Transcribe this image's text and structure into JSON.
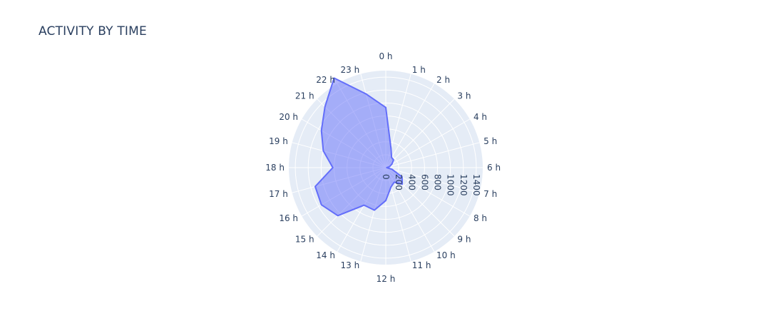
{
  "chart_data": {
    "type": "polar-area",
    "title": "ACTIVITY BY TIME",
    "angular_categories": [
      "0 h",
      "1 h",
      "2 h",
      "3 h",
      "4 h",
      "5 h",
      "6 h",
      "7 h",
      "8 h",
      "9 h",
      "10 h",
      "11 h",
      "12 h",
      "13 h",
      "14 h",
      "15 h",
      "16 h",
      "17 h",
      "18 h",
      "19 h",
      "20 h",
      "21 h",
      "22 h",
      "23 h"
    ],
    "radial_ticks": [
      "0",
      "200",
      "400",
      "600",
      "800",
      "1000",
      "1200",
      "1400"
    ],
    "radial_range": [
      0,
      1500
    ],
    "grid": true,
    "series": [
      {
        "values": [
          930,
          310,
          180,
          170,
          110,
          60,
          15,
          100,
          290,
          360,
          260,
          310,
          510,
          680,
          670,
          1050,
          1150,
          1130,
          820,
          1000,
          1150,
          1330,
          1600,
          1180
        ],
        "fill_color": "#636efa",
        "fill_opacity": 0.5
      }
    ]
  }
}
